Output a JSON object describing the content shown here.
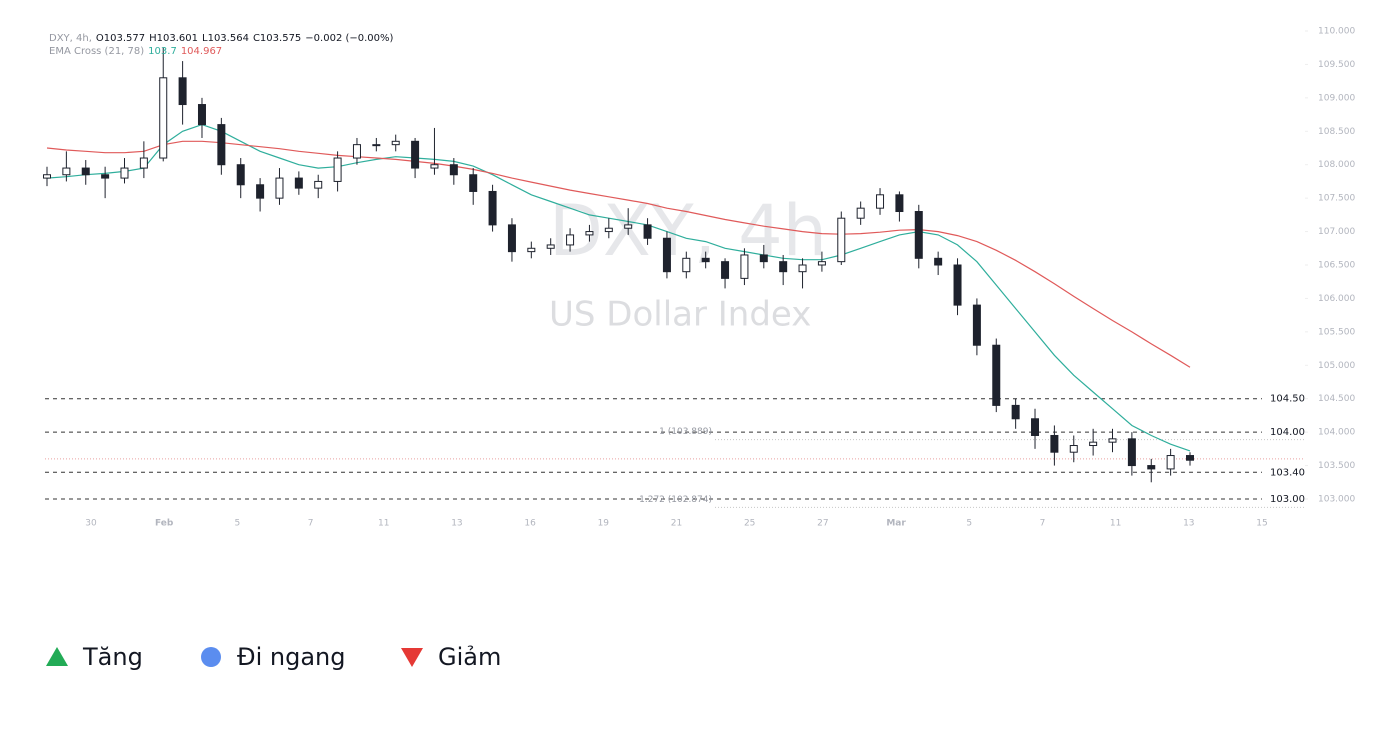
{
  "chart_data": {
    "type": "candlestick",
    "symbol": "DXY, 4h,",
    "ohlc_header": [
      "O103.577",
      "H103.601",
      "L103.564",
      "C103.575",
      "−0.002 (−0.00%)"
    ],
    "indicator": "EMA Cross (21, 78)",
    "indicator_values": [
      "103.7",
      "104.967"
    ],
    "watermark": "DXY, 4h",
    "watermark_subtitle": "US Dollar Index",
    "open": [
      107.8,
      107.85,
      107.95,
      107.85,
      107.8,
      107.95,
      108.1,
      109.3,
      108.9,
      108.6,
      108.0,
      107.7,
      107.5,
      107.8,
      107.65,
      107.75,
      108.1,
      108.3,
      108.3,
      108.35,
      107.95,
      108.0,
      107.85,
      107.6,
      107.1,
      106.7,
      106.75,
      106.8,
      106.95,
      107.0,
      107.05,
      107.1,
      106.9,
      106.4,
      106.6,
      106.55,
      106.3,
      106.65,
      106.55,
      106.4,
      106.5,
      106.55,
      107.2,
      107.35,
      107.55,
      107.3,
      106.6,
      106.5,
      105.9,
      105.3,
      104.4,
      104.2,
      103.95,
      103.7,
      103.8,
      103.85,
      103.9,
      103.5,
      103.45,
      103.65
    ],
    "high": [
      107.97,
      108.2,
      108.07,
      107.97,
      108.1,
      108.35,
      109.75,
      109.55,
      109.0,
      108.7,
      108.1,
      107.8,
      107.95,
      107.9,
      107.85,
      108.2,
      108.4,
      108.4,
      108.45,
      108.4,
      108.55,
      108.1,
      107.95,
      107.7,
      107.2,
      106.85,
      106.9,
      107.05,
      107.1,
      107.2,
      107.35,
      107.2,
      107.0,
      106.7,
      106.7,
      106.6,
      106.75,
      106.8,
      106.65,
      106.6,
      106.7,
      107.3,
      107.45,
      107.65,
      107.6,
      107.4,
      106.7,
      106.6,
      106.0,
      105.4,
      104.5,
      104.35,
      104.1,
      103.95,
      104.05,
      104.05,
      104.0,
      103.6,
      103.75,
      103.7
    ],
    "low": [
      107.68,
      107.75,
      107.7,
      107.5,
      107.72,
      107.8,
      108.05,
      108.6,
      108.4,
      107.85,
      107.5,
      107.3,
      107.4,
      107.55,
      107.5,
      107.6,
      108.0,
      108.2,
      108.2,
      107.8,
      107.85,
      107.7,
      107.4,
      107.0,
      106.55,
      106.6,
      106.65,
      106.7,
      106.85,
      106.9,
      106.95,
      106.8,
      106.3,
      106.3,
      106.45,
      106.15,
      106.2,
      106.45,
      106.2,
      106.15,
      106.4,
      106.5,
      107.1,
      107.25,
      107.15,
      106.45,
      106.35,
      105.75,
      105.15,
      104.3,
      104.05,
      103.75,
      103.5,
      103.55,
      103.65,
      103.7,
      103.35,
      103.25,
      103.35,
      103.5
    ],
    "close": [
      107.85,
      107.95,
      107.85,
      107.8,
      107.95,
      108.1,
      109.3,
      108.9,
      108.6,
      108.0,
      107.7,
      107.5,
      107.8,
      107.65,
      107.75,
      108.1,
      108.3,
      108.3,
      108.35,
      107.95,
      108.0,
      107.85,
      107.6,
      107.1,
      106.7,
      106.75,
      106.8,
      106.95,
      107.0,
      107.05,
      107.1,
      106.9,
      106.4,
      106.6,
      106.55,
      106.3,
      106.65,
      106.55,
      106.4,
      106.5,
      106.55,
      107.2,
      107.35,
      107.55,
      107.3,
      106.6,
      106.5,
      105.9,
      105.3,
      104.4,
      104.2,
      103.95,
      103.7,
      103.8,
      103.85,
      103.9,
      103.5,
      103.45,
      103.65,
      103.58
    ],
    "up_color": "#ffffff",
    "down_color": "#1e222d",
    "series": [
      {
        "name": "EMA 21",
        "color": "#2fae9c",
        "values": [
          107.8,
          107.82,
          107.85,
          107.87,
          107.9,
          107.95,
          108.3,
          108.5,
          108.6,
          108.5,
          108.35,
          108.2,
          108.1,
          108.0,
          107.95,
          107.97,
          108.03,
          108.08,
          108.12,
          108.1,
          108.08,
          108.05,
          107.98,
          107.85,
          107.7,
          107.55,
          107.45,
          107.35,
          107.25,
          107.2,
          107.15,
          107.1,
          107.0,
          106.9,
          106.85,
          106.75,
          106.7,
          106.65,
          106.6,
          106.58,
          106.58,
          106.65,
          106.75,
          106.85,
          106.95,
          107.0,
          106.95,
          106.8,
          106.55,
          106.2,
          105.85,
          105.5,
          105.15,
          104.85,
          104.6,
          104.35,
          104.1,
          103.95,
          103.82,
          103.72
        ]
      },
      {
        "name": "EMA 78",
        "color": "#e05a5a",
        "values": [
          108.25,
          108.22,
          108.2,
          108.18,
          108.18,
          108.2,
          108.3,
          108.35,
          108.35,
          108.33,
          108.3,
          108.27,
          108.24,
          108.2,
          108.17,
          108.14,
          108.12,
          108.1,
          108.08,
          108.05,
          108.02,
          107.98,
          107.93,
          107.87,
          107.8,
          107.74,
          107.68,
          107.62,
          107.57,
          107.52,
          107.47,
          107.42,
          107.35,
          107.3,
          107.24,
          107.18,
          107.13,
          107.08,
          107.04,
          107.0,
          106.97,
          106.96,
          106.97,
          106.99,
          107.02,
          107.03,
          107.0,
          106.94,
          106.85,
          106.72,
          106.57,
          106.4,
          106.22,
          106.03,
          105.85,
          105.67,
          105.5,
          105.32,
          105.15,
          104.97
        ]
      }
    ],
    "ylim": [
      103,
      110
    ],
    "yticks": [
      {
        "value": 103,
        "label": "103.000"
      },
      {
        "value": 103.5,
        "label": "103.500"
      },
      {
        "value": 104,
        "label": "104.000"
      },
      {
        "value": 104.5,
        "label": "104.500"
      },
      {
        "value": 105,
        "label": "105.000"
      },
      {
        "value": 105.5,
        "label": "105.500"
      },
      {
        "value": 106,
        "label": "106.000"
      },
      {
        "value": 106.5,
        "label": "106.500"
      },
      {
        "value": 107,
        "label": "107.000"
      },
      {
        "value": 107.5,
        "label": "107.500"
      },
      {
        "value": 108,
        "label": "108.000"
      },
      {
        "value": 108.5,
        "label": "108.500"
      },
      {
        "value": 109,
        "label": "109.000"
      },
      {
        "value": 109.5,
        "label": "109.500"
      },
      {
        "value": 110,
        "label": "110.000"
      }
    ],
    "xticks": [
      "30",
      "Feb",
      "5",
      "7",
      "11",
      "13",
      "16",
      "19",
      "21",
      "25",
      "27",
      "Mar",
      "5",
      "7",
      "11",
      "13",
      "15"
    ],
    "levels": [
      {
        "value": 104.5,
        "label": "104.50"
      },
      {
        "value": 104,
        "label": "104.00"
      },
      {
        "value": 103.4,
        "label": "103.40"
      },
      {
        "value": 103,
        "label": "103.00"
      }
    ],
    "fib": [
      {
        "value": 103.889,
        "label": "1 (103.889)"
      },
      {
        "value": 102.874,
        "label": "1.272 (102.874)"
      }
    ],
    "last_price": 103.6,
    "legend": [
      {
        "label": "Tăng",
        "color": "#22ab56"
      },
      {
        "label": "Đi ngang",
        "color": "#5b8def"
      },
      {
        "label": "Giảm",
        "color": "#e53935"
      }
    ]
  }
}
